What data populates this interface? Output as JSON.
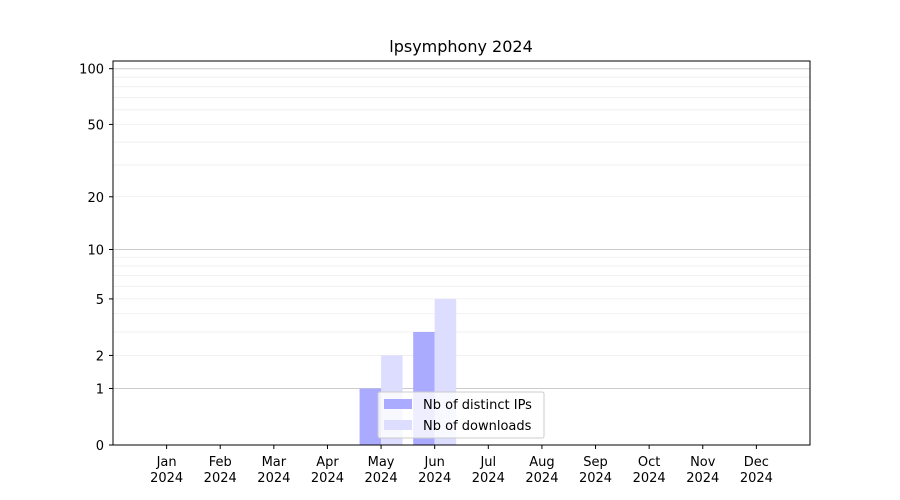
{
  "chart_data": {
    "type": "bar",
    "title": "lpsymphony 2024",
    "xlabel": "",
    "ylabel": "",
    "y_scale": "log1p",
    "ylim": [
      0,
      110
    ],
    "y_ticks": [
      0,
      1,
      2,
      5,
      10,
      20,
      50,
      100
    ],
    "y_tick_labels": [
      "0",
      "1",
      "2",
      "5",
      "10",
      "20",
      "50",
      "100"
    ],
    "categories": [
      "Jan\n2024",
      "Feb\n2024",
      "Mar\n2024",
      "Apr\n2024",
      "May\n2024",
      "Jun\n2024",
      "Jul\n2024",
      "Aug\n2024",
      "Sep\n2024",
      "Oct\n2024",
      "Nov\n2024",
      "Dec\n2024"
    ],
    "category_labels": [
      {
        "month": "Jan",
        "year": "2024"
      },
      {
        "month": "Feb",
        "year": "2024"
      },
      {
        "month": "Mar",
        "year": "2024"
      },
      {
        "month": "Apr",
        "year": "2024"
      },
      {
        "month": "May",
        "year": "2024"
      },
      {
        "month": "Jun",
        "year": "2024"
      },
      {
        "month": "Jul",
        "year": "2024"
      },
      {
        "month": "Aug",
        "year": "2024"
      },
      {
        "month": "Sep",
        "year": "2024"
      },
      {
        "month": "Oct",
        "year": "2024"
      },
      {
        "month": "Nov",
        "year": "2024"
      },
      {
        "month": "Dec",
        "year": "2024"
      }
    ],
    "series": [
      {
        "name": "Nb of distinct IPs",
        "color": "#aaaaff",
        "values": [
          0,
          0,
          0,
          0,
          1,
          3,
          0,
          0,
          0,
          0,
          0,
          0
        ]
      },
      {
        "name": "Nb of downloads",
        "color": "#ddddff",
        "values": [
          0,
          0,
          0,
          0,
          2,
          5,
          0,
          0,
          0,
          0,
          0,
          0
        ]
      }
    ],
    "grid": true,
    "legend_position": "bottom-center"
  }
}
